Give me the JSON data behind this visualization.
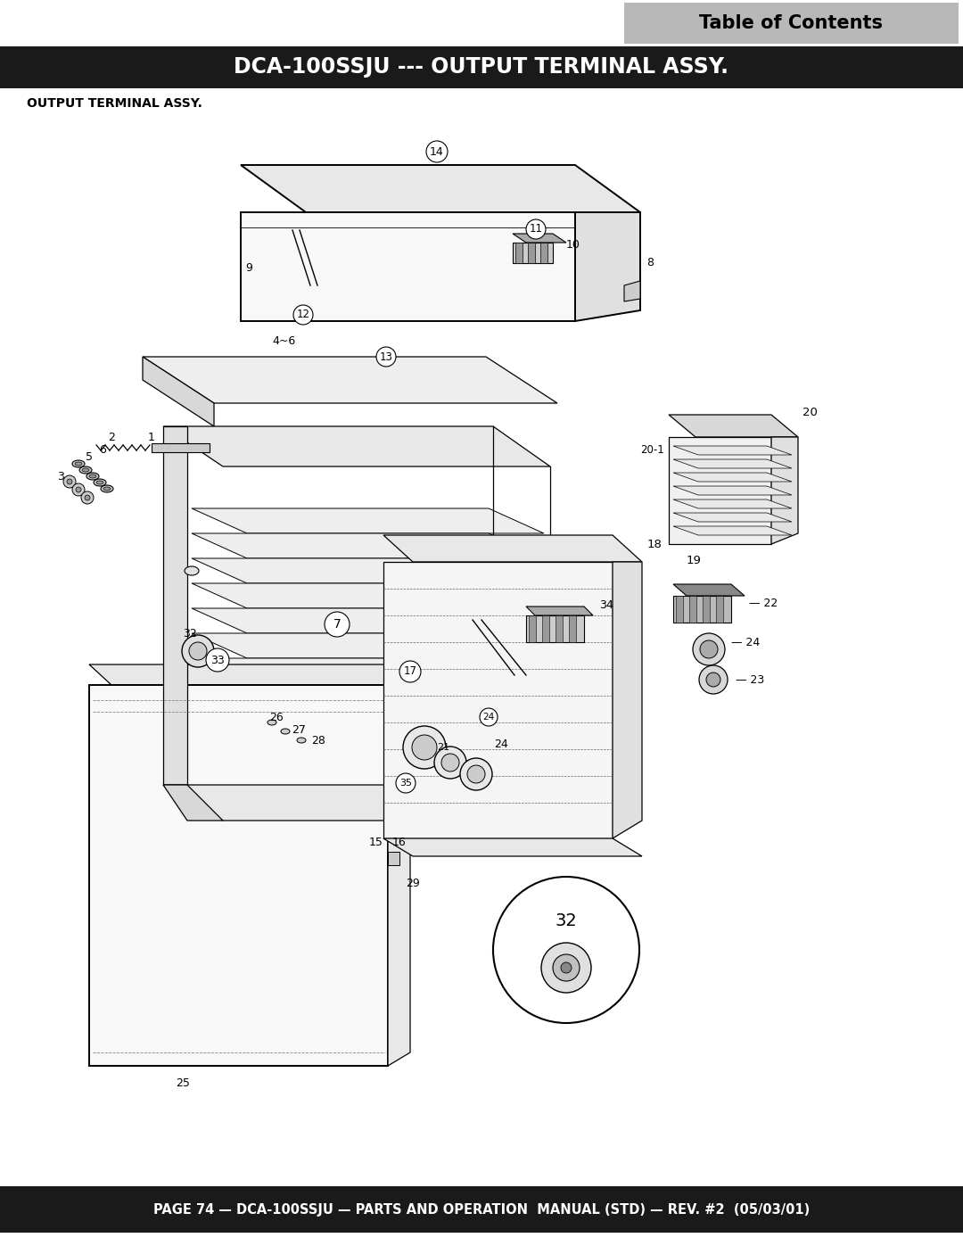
{
  "page_bg": "#ffffff",
  "toc_box_color": "#b0b0b0",
  "toc_text": "Table of Contents",
  "toc_text_color": "#000000",
  "header_bg": "#1a1a1a",
  "header_text": "DCA-100SSJU --- OUTPUT TERMINAL ASSY.",
  "header_text_color": "#ffffff",
  "subtitle_text": "OUTPUT TERMINAL ASSY.",
  "subtitle_color": "#000000",
  "footer_bg": "#1a1a1a",
  "footer_text": "PAGE 74 — DCA-100SSJU — PARTS AND OPERATION  MANUAL (STD) — REV. #2  (05/03/01)",
  "footer_text_color": "#ffffff",
  "fig_width": 10.8,
  "fig_height": 13.97,
  "dpi": 100
}
